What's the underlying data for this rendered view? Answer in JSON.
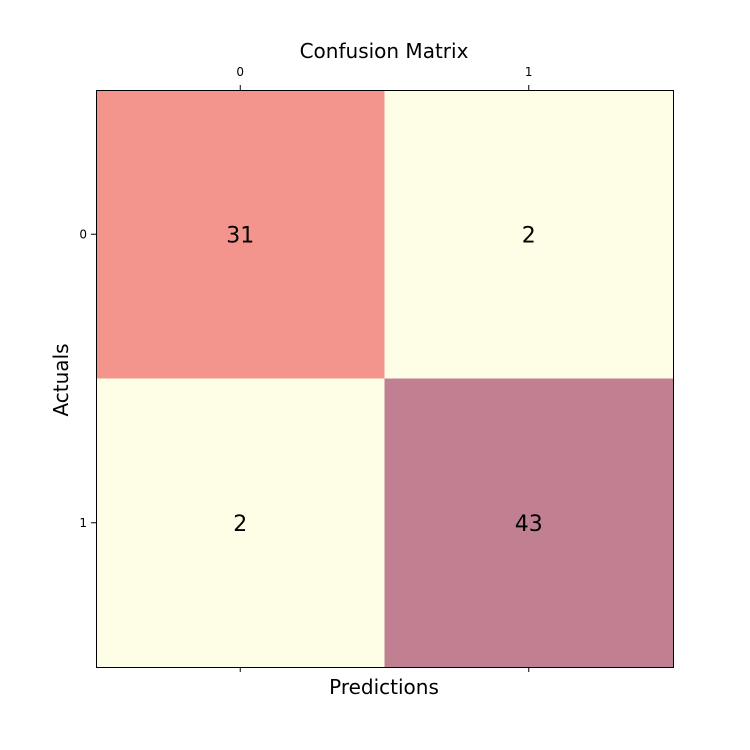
{
  "chart_data": {
    "type": "heatmap",
    "title": "Confusion Matrix",
    "xlabel": "Predictions",
    "ylabel": "Actuals",
    "x_ticks": [
      "0",
      "1"
    ],
    "y_ticks": [
      "0",
      "1"
    ],
    "x_ticks_position": "top",
    "matrix": [
      [
        31,
        2
      ],
      [
        2,
        43
      ]
    ],
    "colormap": "YlOrRd",
    "cell_colors": [
      [
        "#f4958d",
        "#fefee6"
      ],
      [
        "#fefee6",
        "#c08092"
      ]
    ],
    "grid": false
  }
}
